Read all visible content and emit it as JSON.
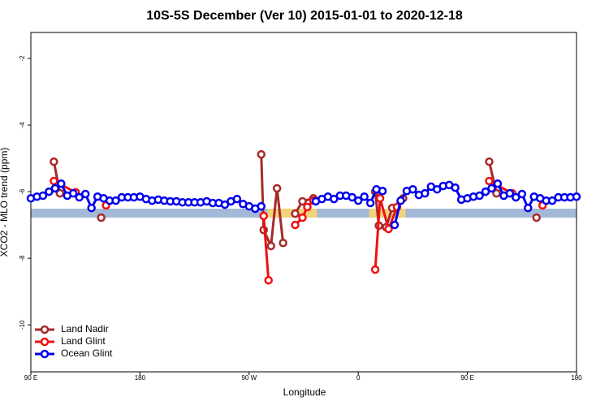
{
  "chart_data": {
    "type": "line",
    "title": "10S-5S December (Ver 10)   2015-01-01 to 2020-12-18",
    "xlabel": "Longitude",
    "ylabel": "XCO2 - MLO trend (ppm)",
    "xlim": [
      90,
      540
    ],
    "ylim": [
      -11.41,
      -1.22
    ],
    "xticks": [
      {
        "value": 90,
        "label": "90 E"
      },
      180,
      {
        "value": 270,
        "label": "90 W"
      },
      {
        "value": 360,
        "label": "0"
      },
      {
        "value": 450,
        "label": "90 E"
      },
      {
        "value": 540,
        "label": "180"
      }
    ],
    "yticks": [
      -10,
      -8,
      -6,
      -4,
      -2
    ],
    "band": [
      -6.78,
      -6.51
    ],
    "band_color": "#a4b8d8",
    "land": [
      [
        285,
        326
      ],
      [
        369,
        399
      ]
    ],
    "land_color": "#f2d27a",
    "legend": "bottom-left",
    "series": [
      {
        "name": "Land Nadir",
        "color": "#a52a2a",
        "x": [
          109,
          114,
          130,
          148,
          200,
          280,
          282,
          288,
          293,
          298,
          303,
          308,
          314,
          323,
          350,
          374,
          377,
          383,
          388,
          397,
          430,
          468,
          474,
          490,
          507
        ],
        "values": [
          -5.1,
          -6.05,
          null,
          -6.78,
          null,
          -4.88,
          -7.15,
          -7.63,
          -5.9,
          -7.54,
          null,
          -6.66,
          -6.29,
          -6.2,
          null,
          -6.0,
          -7.02,
          -7.07,
          -6.49,
          -6.2,
          null,
          -5.1,
          -6.05,
          null,
          -6.78
        ]
      },
      {
        "name": "Land Glint",
        "color": "#ee1111",
        "x": [
          109,
          127,
          140,
          152,
          200,
          282,
          286,
          300,
          308,
          314,
          318,
          323,
          350,
          374,
          378,
          385,
          392,
          430,
          468,
          487,
          500,
          512
        ],
        "values": [
          -5.68,
          -6.02,
          null,
          -6.41,
          null,
          -6.73,
          -8.66,
          null,
          -7.0,
          -6.78,
          -6.46,
          -6.27,
          null,
          -8.34,
          -6.2,
          -7.12,
          -6.46,
          null,
          -5.68,
          -6.05,
          null,
          -6.41
        ]
      },
      {
        "name": "Ocean Glint",
        "color": "#0000ee",
        "x": [
          90,
          95,
          100,
          105,
          110,
          115,
          120,
          125,
          130,
          135,
          140,
          145,
          150,
          155,
          160,
          165,
          170,
          175,
          180,
          185,
          190,
          195,
          200,
          205,
          210,
          215,
          220,
          225,
          230,
          235,
          240,
          245,
          250,
          255,
          260,
          265,
          270,
          275,
          280,
          300,
          325,
          330,
          335,
          340,
          345,
          350,
          355,
          360,
          365,
          370,
          375,
          380,
          385,
          390,
          395,
          400,
          405,
          410,
          415,
          420,
          425,
          430,
          435,
          440,
          445,
          450,
          455,
          460,
          465,
          470,
          475,
          480,
          485,
          490,
          495,
          500,
          505,
          510,
          515,
          520,
          525,
          530,
          535,
          540
        ],
        "values": [
          -6.2,
          -6.15,
          -6.12,
          -6.0,
          -5.9,
          -5.76,
          -6.12,
          -6.05,
          -6.17,
          -6.07,
          -6.49,
          -6.15,
          -6.2,
          -6.27,
          -6.27,
          -6.17,
          -6.17,
          -6.17,
          -6.15,
          -6.22,
          -6.27,
          -6.24,
          -6.27,
          -6.29,
          -6.29,
          -6.32,
          -6.32,
          -6.32,
          -6.32,
          -6.29,
          -6.34,
          -6.34,
          -6.39,
          -6.29,
          -6.22,
          -6.37,
          -6.44,
          -6.51,
          -6.44,
          null,
          -6.29,
          -6.22,
          -6.15,
          -6.22,
          -6.12,
          -6.12,
          -6.17,
          -6.27,
          -6.15,
          -6.34,
          -5.93,
          -5.98,
          null,
          -7.0,
          -6.27,
          -5.98,
          -5.93,
          -6.1,
          -6.05,
          -5.85,
          -5.93,
          -5.83,
          -5.8,
          -5.88,
          -6.24,
          -6.2,
          -6.15,
          -6.12,
          -6.0,
          -5.9,
          -5.76,
          -6.12,
          -6.05,
          -6.17,
          -6.07,
          -6.49,
          -6.15,
          -6.2,
          -6.27,
          -6.27,
          -6.17,
          -6.17,
          -6.17,
          -6.15
        ]
      }
    ]
  }
}
